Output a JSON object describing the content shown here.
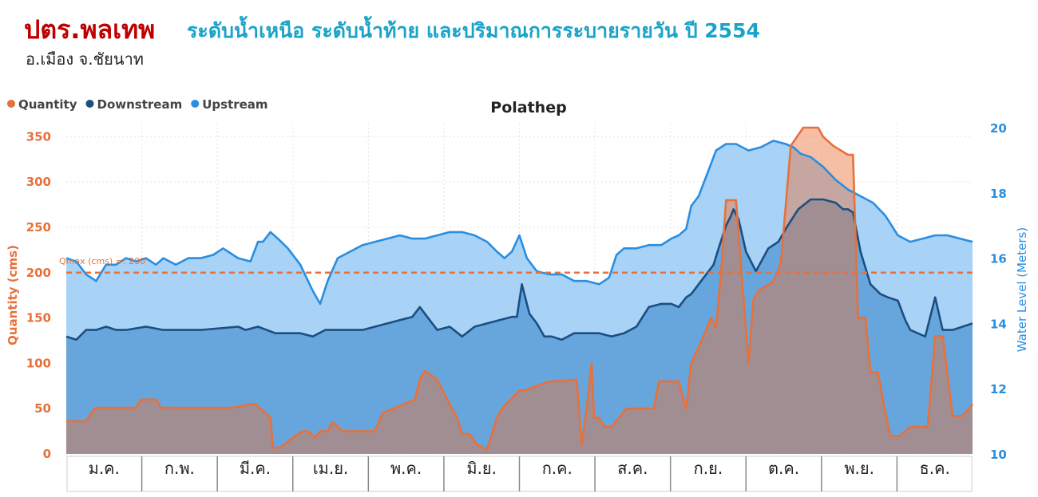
{
  "header": {
    "org": "ปตร.พลเทพ",
    "title": "ระดับน้ำเหนือ ระดับน้ำท้าย และปริมาณการระบายรายวัน ปี 2554",
    "location": "อ.เมือง จ.ชัยนาท"
  },
  "chart_data": {
    "type": "area",
    "title": "Polathep",
    "xlabel": "",
    "y_left_label": "Quantity (cms)",
    "y_right_label": "Water Level (Meters)",
    "y_left_lim": [
      0,
      360
    ],
    "y_right_lim": [
      10,
      20
    ],
    "y_left_ticks": [
      "0",
      "50",
      "100",
      "150",
      "200",
      "250",
      "300",
      "350"
    ],
    "y_right_ticks": [
      "10",
      "12",
      "14",
      "16",
      "18",
      "20"
    ],
    "legend_position": "top-left",
    "grid": true,
    "categories": [
      "ม.ค.",
      "ก.พ.",
      "มี.ค.",
      "เม.ย.",
      "พ.ค.",
      "มิ.ย.",
      "ก.ค.",
      "ส.ค.",
      "ก.ย.",
      "ต.ค.",
      "พ.ย.",
      "ธ.ค."
    ],
    "x_day_range": [
      1,
      365
    ],
    "reference_line": {
      "label": "Qmax (cms) =: 200",
      "value": 200,
      "axis": "left",
      "color": "#e8703a"
    },
    "series": [
      {
        "name": "Quantity",
        "axis": "left",
        "color": "#e8703a",
        "fill": "#e8703a",
        "x": [
          1,
          9,
          11,
          13,
          29,
          31,
          37,
          39,
          61,
          68,
          75,
          77,
          83,
          84,
          87,
          92,
          96,
          98,
          101,
          103,
          106,
          107,
          108,
          112,
          125,
          128,
          141,
          143,
          145,
          150,
          154,
          158,
          160,
          163,
          166,
          170,
          174,
          176,
          183,
          185,
          195,
          198,
          206,
          208,
          210,
          212,
          213,
          215,
          217,
          220,
          226,
          228,
          237,
          239,
          247,
          250,
          252,
          257,
          260,
          262,
          264,
          266,
          268,
          270,
          275,
          277,
          279,
          285,
          288,
          292,
          297,
          299,
          301,
          303,
          305,
          309,
          315,
          317,
          319,
          322,
          324,
          327,
          330,
          332,
          336,
          340,
          347,
          350,
          353,
          357,
          361,
          365
        ],
        "values": [
          36,
          36,
          45,
          51,
          51,
          60,
          60,
          51,
          51,
          51,
          55,
          55,
          40,
          7,
          7,
          18,
          25,
          25,
          18,
          25,
          25,
          31,
          35,
          25,
          25,
          45,
          60,
          82,
          92,
          82,
          60,
          40,
          22,
          22,
          10,
          5,
          40,
          50,
          70,
          70,
          80,
          80,
          82,
          10,
          50,
          100,
          40,
          40,
          30,
          30,
          50,
          50,
          50,
          80,
          80,
          50,
          100,
          130,
          150,
          140,
          200,
          280,
          280,
          280,
          100,
          170,
          180,
          190,
          210,
          340,
          360,
          360,
          360,
          360,
          350,
          340,
          330,
          330,
          150,
          150,
          90,
          90,
          45,
          20,
          20,
          30,
          30,
          130,
          130,
          42,
          42,
          55
        ]
      },
      {
        "name": "Downstream",
        "axis": "right",
        "color": "#1b4f80",
        "fill": "#5b9fd8",
        "x": [
          1,
          5,
          9,
          13,
          17,
          21,
          25,
          33,
          40,
          55,
          70,
          73,
          78,
          85,
          90,
          95,
          100,
          105,
          110,
          115,
          120,
          125,
          130,
          135,
          140,
          143,
          146,
          150,
          155,
          160,
          165,
          170,
          175,
          180,
          182,
          184,
          187,
          190,
          193,
          196,
          200,
          205,
          210,
          215,
          220,
          225,
          230,
          235,
          240,
          244,
          247,
          250,
          252,
          255,
          258,
          261,
          263,
          266,
          268,
          269,
          271,
          274,
          278,
          283,
          287,
          290,
          295,
          300,
          305,
          310,
          313,
          315,
          317,
          320,
          324,
          328,
          331,
          335,
          338,
          340,
          343,
          346,
          350,
          353,
          357,
          361,
          365
        ],
        "values": [
          13.6,
          13.5,
          13.8,
          13.8,
          13.9,
          13.8,
          13.8,
          13.9,
          13.8,
          13.8,
          13.9,
          13.8,
          13.9,
          13.7,
          13.7,
          13.7,
          13.6,
          13.8,
          13.8,
          13.8,
          13.8,
          13.9,
          14.0,
          14.1,
          14.2,
          14.5,
          14.2,
          13.8,
          13.9,
          13.6,
          13.9,
          14.0,
          14.1,
          14.2,
          14.2,
          15.2,
          14.3,
          14.0,
          13.6,
          13.6,
          13.5,
          13.7,
          13.7,
          13.7,
          13.6,
          13.7,
          13.9,
          14.5,
          14.6,
          14.6,
          14.5,
          14.8,
          14.9,
          15.2,
          15.5,
          15.8,
          16.3,
          17.0,
          17.3,
          17.5,
          17.2,
          16.2,
          15.6,
          16.3,
          16.5,
          16.9,
          17.5,
          17.8,
          17.8,
          17.7,
          17.5,
          17.5,
          17.4,
          16.2,
          15.2,
          14.9,
          14.8,
          14.7,
          14.1,
          13.8,
          13.7,
          13.6,
          14.8,
          13.8,
          13.8,
          13.9,
          14.0
        ]
      },
      {
        "name": "Upstream",
        "axis": "right",
        "color": "#2a8ee0",
        "fill": "#a8d2f6",
        "x": [
          1,
          5,
          9,
          13,
          17,
          21,
          25,
          29,
          33,
          37,
          40,
          45,
          50,
          55,
          60,
          64,
          70,
          75,
          78,
          80,
          83,
          86,
          90,
          95,
          100,
          103,
          106,
          110,
          115,
          120,
          125,
          130,
          135,
          140,
          145,
          150,
          155,
          160,
          165,
          170,
          174,
          177,
          180,
          183,
          186,
          190,
          195,
          200,
          205,
          210,
          215,
          219,
          222,
          225,
          230,
          235,
          240,
          244,
          247,
          250,
          252,
          255,
          258,
          262,
          266,
          270,
          275,
          280,
          285,
          290,
          293,
          296,
          300,
          305,
          310,
          315,
          320,
          325,
          330,
          335,
          340,
          345,
          350,
          355,
          360,
          365
        ],
        "values": [
          16.0,
          15.9,
          15.5,
          15.3,
          15.8,
          15.8,
          16.0,
          15.9,
          16.0,
          15.8,
          16.0,
          15.8,
          16.0,
          16.0,
          16.1,
          16.3,
          16.0,
          15.9,
          16.5,
          16.5,
          16.8,
          16.6,
          16.3,
          15.8,
          15.0,
          14.6,
          15.3,
          16.0,
          16.2,
          16.4,
          16.5,
          16.6,
          16.7,
          16.6,
          16.6,
          16.7,
          16.8,
          16.8,
          16.7,
          16.5,
          16.2,
          16.0,
          16.2,
          16.7,
          16.0,
          15.6,
          15.5,
          15.5,
          15.3,
          15.3,
          15.2,
          15.4,
          16.1,
          16.3,
          16.3,
          16.4,
          16.4,
          16.6,
          16.7,
          16.9,
          17.6,
          17.9,
          18.5,
          19.3,
          19.5,
          19.5,
          19.3,
          19.4,
          19.6,
          19.5,
          19.4,
          19.2,
          19.1,
          18.8,
          18.4,
          18.1,
          17.9,
          17.7,
          17.3,
          16.7,
          16.5,
          16.6,
          16.7,
          16.7,
          16.6,
          16.5
        ]
      }
    ]
  }
}
